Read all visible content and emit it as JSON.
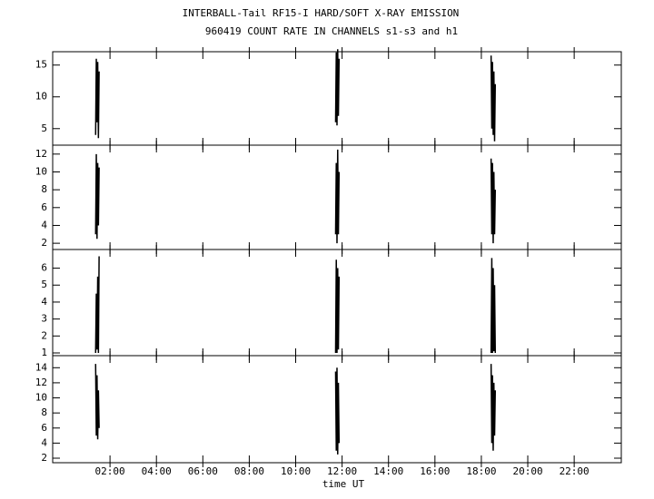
{
  "chart_data": [
    {
      "type": "line",
      "title": "INTERBALL-Tail RF15-I HARD/SOFT X-RAY EMISSION",
      "subtitle": "960419  COUNT RATE IN CHANNELS s1-s3 and h1",
      "x": [
        1.38,
        1.41,
        1.44,
        1.47,
        1.5,
        1.53,
        null,
        11.72,
        11.75,
        11.78,
        11.81,
        11.84,
        11.87,
        null,
        18.42,
        18.45,
        18.48,
        18.51,
        18.54,
        18.57,
        18.6
      ],
      "values": [
        4,
        16,
        6,
        15.5,
        3.5,
        14,
        null,
        6,
        17,
        5.5,
        17.5,
        7,
        16,
        null,
        16.5,
        5,
        15.5,
        4,
        14,
        3,
        12
      ],
      "color": "#000000",
      "xlim": [
        -0.47,
        24.03
      ],
      "ylim": [
        2.4,
        17.1
      ],
      "yticks": [
        5,
        10,
        15
      ]
    },
    {
      "type": "line",
      "x": [
        1.38,
        1.41,
        1.44,
        1.47,
        1.5,
        1.53,
        null,
        11.72,
        11.75,
        11.78,
        11.81,
        11.84,
        11.87,
        null,
        18.42,
        18.45,
        18.48,
        18.51,
        18.54,
        18.57,
        18.6
      ],
      "values": [
        3,
        12,
        2.5,
        11,
        4,
        10.5,
        null,
        3,
        11,
        2,
        12.5,
        3,
        10,
        null,
        11.5,
        3,
        11,
        2,
        10,
        3,
        8
      ],
      "color": "#000000",
      "xlim": [
        -0.47,
        24.03
      ],
      "ylim": [
        1.3,
        13.0
      ],
      "yticks": [
        2,
        4,
        6,
        8,
        10,
        12
      ]
    },
    {
      "type": "line",
      "x": [
        1.38,
        1.41,
        1.44,
        1.47,
        1.5,
        1.53,
        null,
        11.72,
        11.75,
        11.78,
        11.81,
        11.84,
        11.87,
        null,
        18.42,
        18.45,
        18.48,
        18.51,
        18.54,
        18.57,
        18.6
      ],
      "values": [
        1,
        4.5,
        1.2,
        5.5,
        1,
        6.7,
        null,
        1,
        6.5,
        1,
        6,
        1.2,
        5.5,
        null,
        1,
        6.6,
        1,
        6,
        1.1,
        5,
        1
      ],
      "color": "#000000",
      "xlim": [
        -0.47,
        24.03
      ],
      "ylim": [
        0.84,
        7.1
      ],
      "yticks": [
        1,
        2,
        3,
        4,
        5,
        6
      ]
    },
    {
      "type": "line",
      "xlabel": "time UT",
      "x": [
        1.38,
        1.41,
        1.44,
        1.47,
        1.5,
        1.53,
        null,
        11.72,
        11.75,
        11.78,
        11.81,
        11.84,
        11.87,
        null,
        18.42,
        18.45,
        18.48,
        18.51,
        18.54,
        18.57,
        18.6
      ],
      "values": [
        14.5,
        5,
        13,
        4.5,
        11,
        6,
        null,
        13.5,
        3,
        14,
        2.5,
        12,
        4,
        null,
        14.5,
        4,
        13,
        3,
        12,
        5,
        11
      ],
      "color": "#000000",
      "xlim": [
        -0.47,
        24.03
      ],
      "ylim": [
        1.4,
        15.6
      ],
      "yticks": [
        2,
        4,
        6,
        8,
        10,
        12,
        14
      ],
      "xticks": [
        {
          "value": 2,
          "label": "02:00"
        },
        {
          "value": 4,
          "label": "04:00"
        },
        {
          "value": 6,
          "label": "06:00"
        },
        {
          "value": 8,
          "label": "08:00"
        },
        {
          "value": 10,
          "label": "10:00"
        },
        {
          "value": 12,
          "label": "12:00"
        },
        {
          "value": 14,
          "label": "14:00"
        },
        {
          "value": 16,
          "label": "16:00"
        },
        {
          "value": 18,
          "label": "18:00"
        },
        {
          "value": 20,
          "label": "20:00"
        },
        {
          "value": 22,
          "label": "22:00"
        }
      ]
    }
  ]
}
